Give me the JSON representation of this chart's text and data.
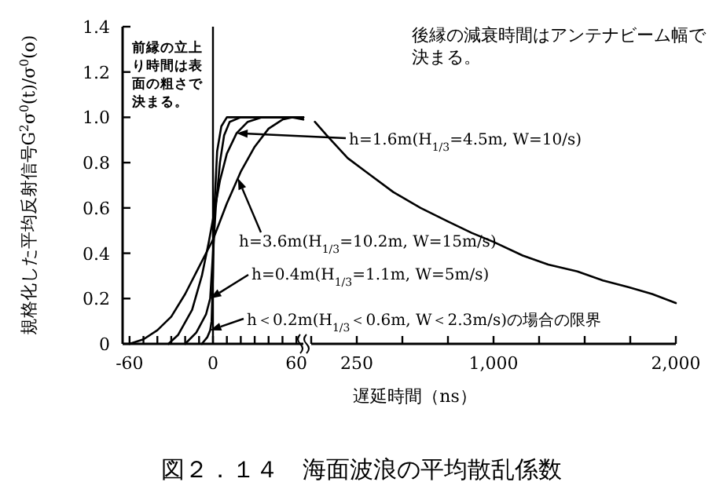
{
  "chart_data": [
    {
      "type": "line",
      "title": "図２．１４　海面波浪の平均散乱係数",
      "xlabel": "遅延時間（ns）",
      "ylabel": "規格化した平均反射信号G$^{2}$σ$^{0}$(t)/σ$^{0}$(o)",
      "xlim": [
        -65,
        65
      ],
      "ylim": [
        0,
        1.4
      ],
      "xticks": [
        -60,
        {
          "value": -50,
          "label": null
        },
        {
          "value": -40,
          "label": null
        },
        {
          "value": -30,
          "label": null
        },
        {
          "value": -20,
          "label": null
        },
        {
          "value": -10,
          "label": null
        },
        0,
        {
          "value": 10,
          "label": null
        },
        {
          "value": 20,
          "label": null
        },
        {
          "value": 30,
          "label": null
        },
        {
          "value": 40,
          "label": null
        },
        {
          "value": 50,
          "label": null
        },
        60
      ],
      "yticks": [
        0,
        0.2,
        0.4,
        0.6,
        0.8,
        {
          "value": 1,
          "label": "1.0"
        },
        1.2,
        1.4
      ],
      "ref_lines": [
        {
          "axis": "x",
          "value": 0,
          "color": "#000000"
        }
      ],
      "series": [
        {
          "color": "#000000",
          "x": [
            -60,
            -50,
            -40,
            -30,
            -20,
            -10,
            0,
            10,
            20,
            30,
            40,
            50,
            57,
            65
          ],
          "values": [
            0,
            0.02,
            0.06,
            0.12,
            0.22,
            0.34,
            0.46,
            0.62,
            0.76,
            0.87,
            0.95,
            0.99,
            1.0,
            0.99
          ]
        },
        {
          "color": "#000000",
          "x": [
            -32,
            -25,
            -15,
            -8,
            -3,
            0,
            5,
            10,
            17,
            25,
            35,
            65
          ],
          "values": [
            0,
            0.04,
            0.15,
            0.3,
            0.45,
            0.55,
            0.72,
            0.84,
            0.93,
            0.98,
            1.0,
            1.0
          ]
        },
        {
          "color": "#000000",
          "x": [
            -20,
            -12,
            -5,
            -2,
            0,
            2,
            5,
            8,
            12,
            20,
            65
          ],
          "values": [
            0,
            0.05,
            0.13,
            0.2,
            0.4,
            0.6,
            0.8,
            0.92,
            0.98,
            1.0,
            1.0
          ]
        },
        {
          "color": "#000000",
          "x": [
            -8,
            -4,
            -2,
            -1,
            0,
            1,
            3,
            6,
            10,
            65
          ],
          "values": [
            0,
            0.03,
            0.06,
            0.1,
            0.3,
            0.6,
            0.85,
            0.96,
            1.0,
            1.0
          ]
        }
      ],
      "annotations": [
        "前縁の立上り時間は表面の粗さで決まる。",
        {
          "text": "h=1.6m(H$_{1/3}$=4.5m, W=10/s)",
          "x": 17,
          "y": 0.93
        },
        {
          "text": "h=3.6m(H$_{1/3}$=10.2m, W=15m/s)",
          "x": 18,
          "y": 0.73
        },
        {
          "text": "h=0.4m(H$_{1/3}$=1.1m, W=5m/s)",
          "x": -2,
          "y": 0.2
        },
        {
          "text": "h＜0.2m(H$_{1/3}$＜0.6m, W＜2.3m/s)の場合の限界",
          "x": -2,
          "y": 0.06
        }
      ]
    },
    {
      "type": "line",
      "xlim": [
        0,
        2000
      ],
      "ylim": [
        0,
        1.4
      ],
      "tick_labels": "x",
      "xticks": [
        {
          "value": 0,
          "label": null
        },
        250,
        {
          "value": 500,
          "label": null
        },
        {
          "value": 750,
          "label": null
        },
        {
          "value": 1000,
          "label": "1,000"
        },
        {
          "value": 1250,
          "label": null
        },
        {
          "value": 1500,
          "label": null
        },
        {
          "value": 1750,
          "label": null
        },
        {
          "value": 2000,
          "label": "2,000"
        }
      ],
      "series": [
        {
          "color": "#000000",
          "x": [
            20,
            86,
            200,
            300,
            450,
            600,
            750,
            880,
            1000,
            1160,
            1300,
            1460,
            1600,
            1740,
            1870,
            2000
          ],
          "values": [
            0.98,
            0.92,
            0.82,
            0.76,
            0.67,
            0.6,
            0.54,
            0.49,
            0.45,
            0.39,
            0.35,
            0.32,
            0.28,
            0.25,
            0.22,
            0.18
          ]
        }
      ],
      "annotations": [
        "後縁の減衰時間はアンテナビーム幅で決まる。"
      ]
    }
  ]
}
